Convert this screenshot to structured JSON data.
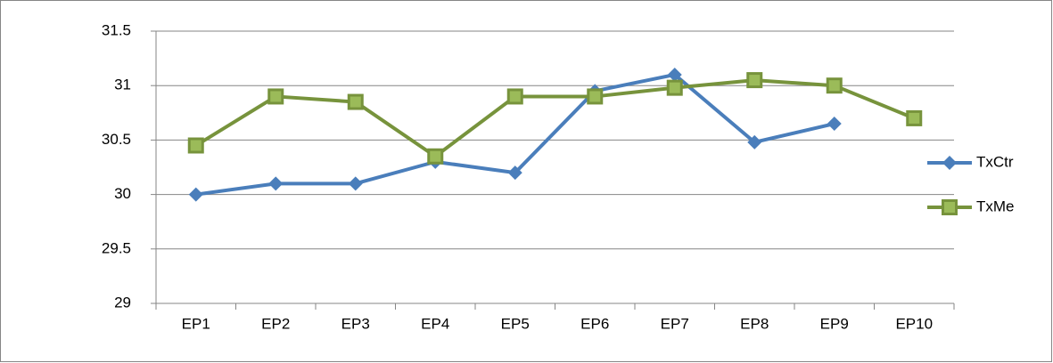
{
  "chart_data": {
    "type": "line",
    "categories": [
      "EP1",
      "EP2",
      "EP3",
      "EP4",
      "EP5",
      "EP6",
      "EP7",
      "EP8",
      "EP9",
      "EP10"
    ],
    "series": [
      {
        "name": "TxCtr",
        "color": "#4a7ebb",
        "marker": "diamond",
        "values": [
          30,
          30.1,
          30.1,
          30.3,
          30.2,
          30.95,
          31.1,
          30.48,
          30.65,
          null
        ]
      },
      {
        "name": "TxMe",
        "color": "#77933c",
        "marker": "square",
        "marker_fill": "#9bbb59",
        "values": [
          30.45,
          30.9,
          30.85,
          30.35,
          30.9,
          30.9,
          30.98,
          31.05,
          31.0,
          30.7
        ]
      }
    ],
    "ylim": [
      29,
      31.5
    ],
    "yticks": [
      29,
      29.5,
      30,
      30.5,
      31,
      31.5
    ],
    "grid": true,
    "legend": "right"
  }
}
